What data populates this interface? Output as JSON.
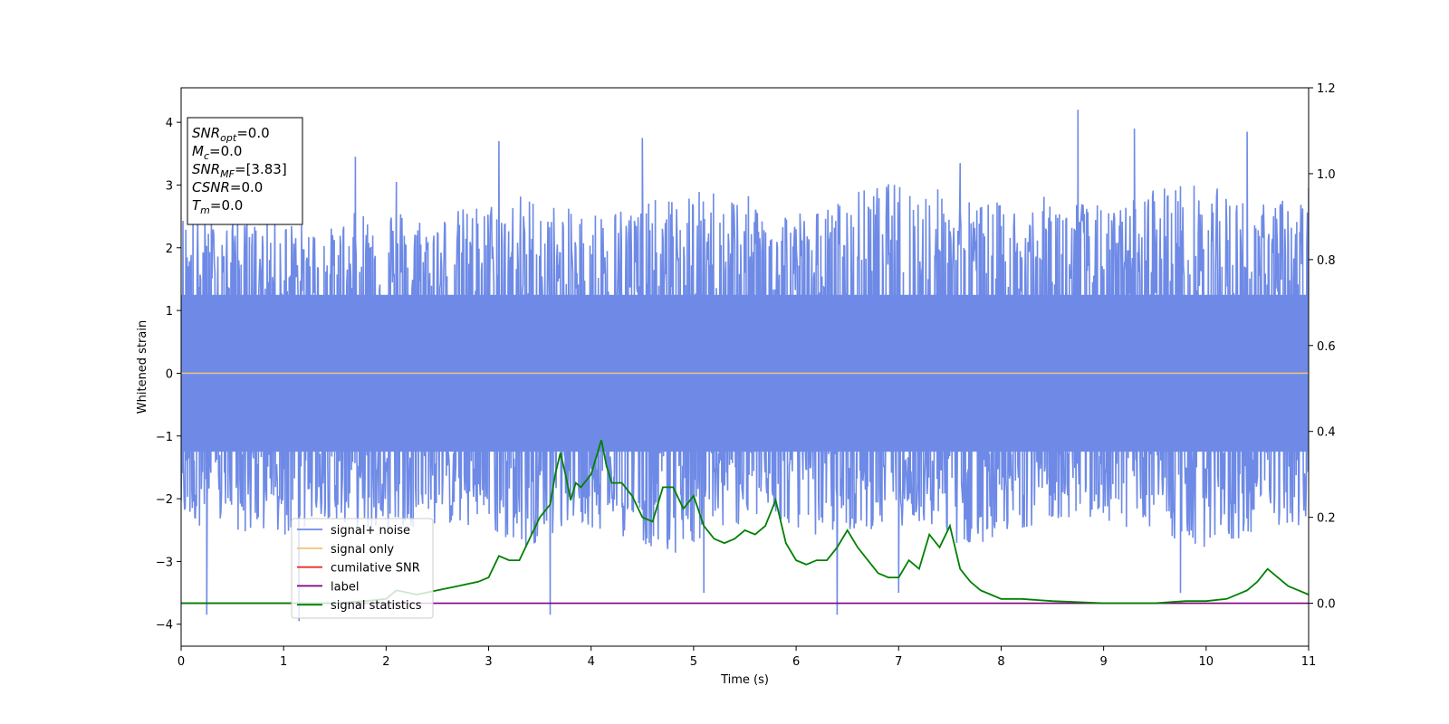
{
  "chart_data": {
    "type": "line",
    "title": "",
    "xlabel": "Time (s)",
    "ylabel": "Whitened strain",
    "y2label": "",
    "xlim": [
      0,
      11
    ],
    "ylim": [
      -4.35,
      4.55
    ],
    "y2lim": [
      -0.1,
      1.2
    ],
    "xticks": [
      0,
      1,
      2,
      3,
      4,
      5,
      6,
      7,
      8,
      9,
      10,
      11
    ],
    "yticks": [
      -4,
      -3,
      -2,
      -1,
      0,
      1,
      2,
      3,
      4
    ],
    "y2ticks": [
      0.0,
      0.2,
      0.4,
      0.6,
      0.8,
      1.0,
      1.2
    ],
    "y2tick_labels": [
      "0.0",
      "0.2",
      "0.4",
      "0.6",
      "0.8",
      "1.0",
      "1.2"
    ],
    "grid": false,
    "legend_position": "lower-left",
    "info_box": {
      "position": "top-left",
      "lines": [
        {
          "name": "SNR",
          "sub": "opt",
          "value": "=0.0"
        },
        {
          "name": "M",
          "sub": "c",
          "value": "=0.0"
        },
        {
          "name": "SNR",
          "sub": "MF",
          "value": "=[3.83]"
        },
        {
          "name": "CSNR",
          "sub": "",
          "value": "=0.0"
        },
        {
          "name": "T",
          "sub": "m",
          "value": "=0.0"
        }
      ]
    },
    "series": [
      {
        "name": "signal+ noise",
        "axis": "left",
        "color": "#6e8ae6",
        "style": "noise band",
        "envelope_upper": [
          2.6,
          2.4,
          2.5,
          2.3,
          2.8,
          2.5,
          2.7,
          2.9,
          2.6,
          2.7,
          2.8,
          3.0,
          2.7,
          2.6,
          3.0,
          3.1,
          2.8,
          2.7,
          2.9,
          2.6,
          3.1,
          3.0,
          2.7,
          2.9
        ],
        "envelope_lower": [
          -2.4,
          -2.5,
          -2.7,
          -2.3,
          -2.6,
          -2.4,
          -2.5,
          -2.8,
          -2.4,
          -2.6,
          -2.9,
          -2.5,
          -2.3,
          -2.6,
          -2.5,
          -2.4,
          -2.8,
          -2.5,
          -2.3,
          -2.4,
          -2.6,
          -2.9,
          -2.5,
          -2.4
        ],
        "peaks": [
          [
            0.25,
            -3.85
          ],
          [
            0.55,
            3.2
          ],
          [
            1.15,
            -3.95
          ],
          [
            1.7,
            3.45
          ],
          [
            2.1,
            3.05
          ],
          [
            3.1,
            3.7
          ],
          [
            3.6,
            -3.85
          ],
          [
            4.5,
            3.75
          ],
          [
            5.1,
            -3.5
          ],
          [
            6.4,
            -3.85
          ],
          [
            7.0,
            -3.5
          ],
          [
            7.6,
            3.35
          ],
          [
            8.75,
            4.2
          ],
          [
            9.3,
            3.9
          ],
          [
            9.75,
            -3.5
          ],
          [
            10.4,
            3.85
          ],
          [
            11.0,
            2.95
          ]
        ]
      },
      {
        "name": "signal only",
        "axis": "left",
        "color": "#f5c27a",
        "x": [
          0,
          11
        ],
        "values": [
          0,
          0
        ]
      },
      {
        "name": "cumilative SNR",
        "axis": "left",
        "color": "#e8211d",
        "x": [],
        "values": []
      },
      {
        "name": "label",
        "axis": "right",
        "color": "#800080",
        "x": [
          0,
          11
        ],
        "values": [
          0,
          0
        ]
      },
      {
        "name": "signal statistics",
        "axis": "right",
        "color": "#008000",
        "x": [
          0,
          0.5,
          1.0,
          1.5,
          1.8,
          2.0,
          2.1,
          2.3,
          2.5,
          2.7,
          2.9,
          3.0,
          3.1,
          3.2,
          3.3,
          3.4,
          3.5,
          3.6,
          3.65,
          3.7,
          3.75,
          3.8,
          3.85,
          3.9,
          4.0,
          4.1,
          4.15,
          4.2,
          4.3,
          4.4,
          4.5,
          4.6,
          4.7,
          4.8,
          4.9,
          5.0,
          5.1,
          5.2,
          5.3,
          5.4,
          5.5,
          5.6,
          5.7,
          5.8,
          5.9,
          6.0,
          6.1,
          6.2,
          6.3,
          6.4,
          6.5,
          6.6,
          6.7,
          6.8,
          6.9,
          7.0,
          7.1,
          7.2,
          7.3,
          7.4,
          7.5,
          7.6,
          7.7,
          7.8,
          7.9,
          8.0,
          8.2,
          8.5,
          9.0,
          9.5,
          9.8,
          10.0,
          10.2,
          10.4,
          10.5,
          10.6,
          10.7,
          10.8,
          10.9,
          11.0
        ],
        "values": [
          0.0,
          0.0,
          0.0,
          0.0,
          0.005,
          0.01,
          0.03,
          0.02,
          0.03,
          0.04,
          0.05,
          0.06,
          0.11,
          0.1,
          0.1,
          0.15,
          0.2,
          0.23,
          0.3,
          0.35,
          0.3,
          0.24,
          0.28,
          0.27,
          0.3,
          0.38,
          0.32,
          0.28,
          0.28,
          0.25,
          0.2,
          0.19,
          0.27,
          0.27,
          0.22,
          0.25,
          0.18,
          0.15,
          0.14,
          0.15,
          0.17,
          0.16,
          0.18,
          0.24,
          0.14,
          0.1,
          0.09,
          0.1,
          0.1,
          0.13,
          0.17,
          0.13,
          0.1,
          0.07,
          0.06,
          0.06,
          0.1,
          0.08,
          0.16,
          0.13,
          0.18,
          0.08,
          0.05,
          0.03,
          0.02,
          0.01,
          0.01,
          0.005,
          0.0,
          0.0,
          0.005,
          0.005,
          0.01,
          0.03,
          0.05,
          0.08,
          0.06,
          0.04,
          0.03,
          0.02
        ]
      }
    ]
  }
}
